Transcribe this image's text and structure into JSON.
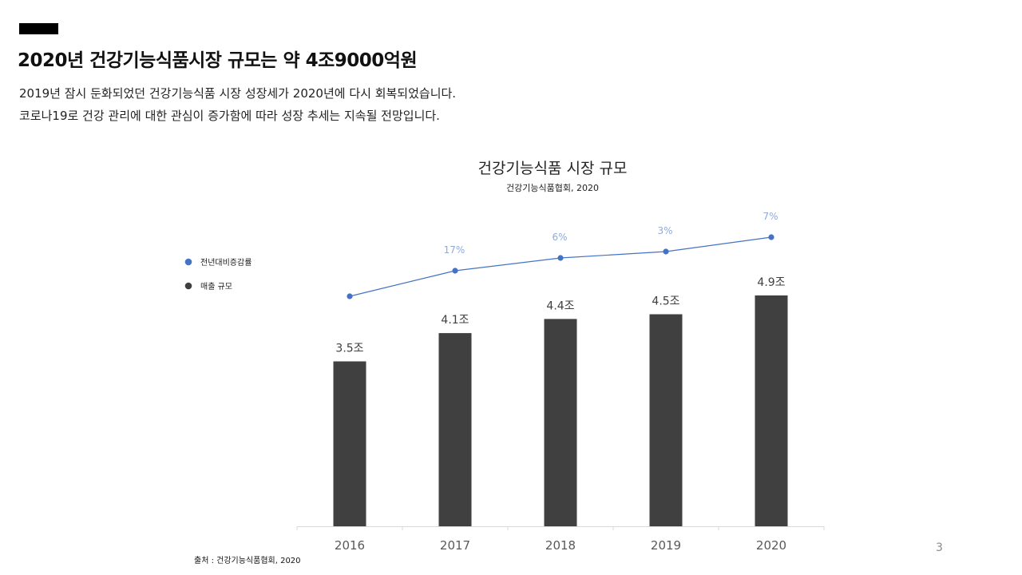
{
  "slide": {
    "title": "2020년 건강기능식품시장 규모는 약 4조9000억원",
    "description_line1": "2019년 잠시 둔화되었던 건강기능식품 시장 성장세가 2020년에 다시 회복되었습니다.",
    "description_line2": "코로나19로 건강 관리에 대한 관심이 증가함에 따라 성장 추세는 지속될 전망입니다.",
    "source_note": "출처 : 건강기능식품협회, 2020",
    "page_number": "3"
  },
  "chart_data": {
    "type": "bar",
    "title": "건강기능식품 시장 규모",
    "subtitle": "건강기능식품협회,  2020",
    "categories": [
      "2016",
      "2017",
      "2018",
      "2019",
      "2020"
    ],
    "series": [
      {
        "name": "매출 규모",
        "chart_type": "bar",
        "values": [
          3.5,
          4.1,
          4.4,
          4.5,
          4.9
        ],
        "labels": [
          "3.5조",
          "4.1조",
          "4.4조",
          "4.5조",
          "4.9조"
        ],
        "color": "#404040"
      },
      {
        "name": "전년대비증감률",
        "chart_type": "line",
        "values": [
          null,
          17,
          6,
          3,
          7
        ],
        "labels": [
          "",
          "17%",
          "6%",
          "3%",
          "7%"
        ],
        "color": "#4472C4",
        "label_color": "#8EAADB"
      }
    ],
    "legend_position": "left",
    "grid": false
  }
}
